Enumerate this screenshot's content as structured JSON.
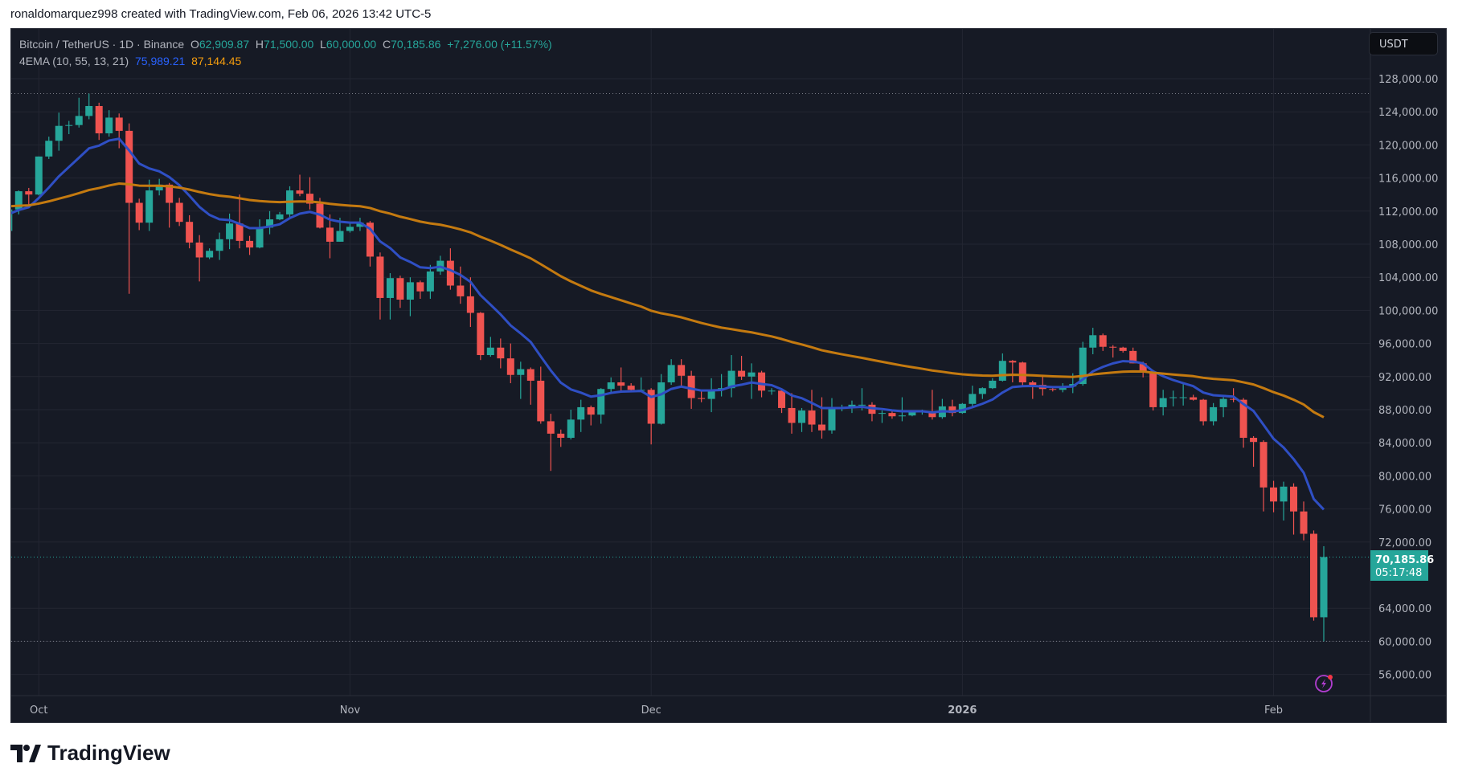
{
  "credit": "ronaldomarquez998 created with TradingView.com, Feb 06, 2026 13:42 UTC-5",
  "legend": {
    "symbol": "Bitcoin / TetherUS · 1D · Binance",
    "o_label": "O",
    "o": "62,909.87",
    "h_label": "H",
    "h": "71,500.00",
    "l_label": "L",
    "l": "60,000.00",
    "c_label": "C",
    "c": "70,185.86",
    "change": "+7,276.00 (+11.57%)",
    "indicator": "4EMA (10, 55, 13, 21)",
    "ema_fast": "75,989.21",
    "ema_slow": "87,144.45"
  },
  "currency_button": "USDT",
  "price_tag": {
    "price": "70,185.86",
    "countdown": "05:17:48"
  },
  "footer_logo": "TradingView",
  "colors": {
    "background": "#161a25",
    "grid": "#232632",
    "up": "#26a69a",
    "down": "#ef5350",
    "ema_fast": "#2f4fc4",
    "ema_slow": "#c47a10",
    "text": "#b2b5be"
  },
  "chart_data": {
    "type": "candlestick",
    "title": "Bitcoin / TetherUS · 1D · Binance",
    "ylim": [
      53500,
      131000
    ],
    "y_ticks": [
      "128,000.00",
      "124,000.00",
      "120,000.00",
      "116,000.00",
      "112,000.00",
      "108,000.00",
      "104,000.00",
      "100,000.00",
      "96,000.00",
      "92,000.00",
      "88,000.00",
      "84,000.00",
      "80,000.00",
      "76,000.00",
      "72,000.00",
      "64,000.00",
      "60,000.00",
      "56,000.00"
    ],
    "x_ticks": [
      {
        "label": "Oct",
        "date": "2025-10-01"
      },
      {
        "label": "Nov",
        "date": "2025-11-01"
      },
      {
        "label": "Dec",
        "date": "2025-12-01"
      },
      {
        "label": "2026",
        "date": "2026-01-01"
      },
      {
        "label": "Feb",
        "date": "2026-02-01"
      }
    ],
    "reference_lines": {
      "high": 126200,
      "last": 70185.86,
      "low": 60000
    },
    "ema_last": {
      "fast": 75989.21,
      "slow": 87144.45
    },
    "start_date": "2025-09-28",
    "ohlc": [
      [
        109.6,
        112.4,
        109.2,
        112.2
      ],
      [
        112.2,
        114.5,
        111.6,
        114.4
      ],
      [
        114.4,
        114.8,
        112.7,
        114.0
      ],
      [
        114.0,
        118.6,
        113.9,
        118.6
      ],
      [
        118.6,
        121.0,
        118.3,
        120.5
      ],
      [
        120.5,
        123.9,
        119.3,
        122.3
      ],
      [
        122.3,
        122.9,
        121.3,
        122.4
      ],
      [
        122.4,
        125.7,
        122.1,
        123.5
      ],
      [
        123.5,
        126.2,
        123.1,
        124.7
      ],
      [
        124.7,
        125.1,
        120.6,
        121.4
      ],
      [
        121.4,
        124.2,
        121.0,
        123.3
      ],
      [
        123.3,
        123.8,
        119.6,
        121.7
      ],
      [
        121.7,
        122.6,
        102.0,
        113.0
      ],
      [
        113.0,
        113.5,
        109.7,
        110.6
      ],
      [
        110.6,
        115.8,
        109.6,
        114.5
      ],
      [
        114.5,
        115.9,
        113.9,
        115.2
      ],
      [
        115.2,
        115.4,
        110.0,
        113.0
      ],
      [
        113.0,
        113.6,
        110.2,
        110.7
      ],
      [
        110.7,
        111.5,
        107.5,
        108.2
      ],
      [
        108.2,
        109.1,
        103.5,
        106.4
      ],
      [
        106.4,
        107.5,
        106.2,
        107.2
      ],
      [
        107.2,
        109.4,
        106.1,
        108.6
      ],
      [
        108.6,
        111.7,
        107.4,
        110.5
      ],
      [
        110.5,
        114.0,
        107.5,
        108.4
      ],
      [
        108.4,
        109.0,
        106.7,
        107.6
      ],
      [
        107.6,
        111.0,
        107.5,
        110.0
      ],
      [
        110.0,
        112.0,
        109.2,
        111.0
      ],
      [
        111.0,
        111.9,
        110.9,
        111.6
      ],
      [
        111.6,
        115.0,
        111.3,
        114.5
      ],
      [
        114.5,
        116.4,
        113.8,
        114.1
      ],
      [
        114.1,
        116.1,
        112.2,
        112.9
      ],
      [
        112.9,
        113.6,
        109.9,
        110.0
      ],
      [
        110.0,
        111.6,
        106.3,
        108.3
      ],
      [
        108.3,
        111.2,
        108.3,
        109.6
      ],
      [
        109.6,
        110.6,
        109.4,
        110.1
      ],
      [
        110.1,
        111.2,
        109.6,
        110.6
      ],
      [
        110.6,
        110.8,
        105.3,
        106.5
      ],
      [
        106.5,
        107.0,
        98.9,
        101.5
      ],
      [
        101.5,
        104.5,
        98.9,
        103.9
      ],
      [
        103.9,
        104.2,
        100.3,
        101.3
      ],
      [
        101.3,
        104.0,
        99.3,
        103.4
      ],
      [
        103.4,
        103.6,
        101.4,
        102.3
      ],
      [
        102.3,
        105.5,
        101.4,
        104.7
      ],
      [
        104.7,
        106.6,
        104.3,
        106.0
      ],
      [
        106.0,
        107.5,
        102.5,
        103.0
      ],
      [
        103.0,
        105.3,
        100.8,
        101.7
      ],
      [
        101.7,
        104.0,
        98.0,
        99.7
      ],
      [
        99.7,
        99.8,
        94.0,
        94.6
      ],
      [
        94.6,
        96.8,
        94.4,
        95.5
      ],
      [
        95.5,
        96.6,
        93.0,
        94.2
      ],
      [
        94.2,
        96.0,
        91.2,
        92.2
      ],
      [
        92.2,
        93.8,
        89.3,
        92.9
      ],
      [
        92.9,
        93.1,
        88.6,
        91.5
      ],
      [
        91.5,
        93.2,
        86.3,
        86.6
      ],
      [
        86.6,
        87.5,
        80.6,
        85.1
      ],
      [
        85.1,
        85.6,
        83.5,
        84.6
      ],
      [
        84.6,
        88.0,
        84.4,
        86.8
      ],
      [
        86.8,
        89.2,
        85.3,
        88.3
      ],
      [
        88.3,
        88.5,
        86.1,
        87.4
      ],
      [
        87.4,
        90.6,
        86.3,
        90.5
      ],
      [
        90.5,
        91.9,
        90.1,
        91.3
      ],
      [
        91.3,
        93.1,
        90.2,
        90.9
      ],
      [
        90.9,
        91.2,
        90.3,
        90.4
      ],
      [
        90.4,
        91.9,
        90.3,
        90.4
      ],
      [
        90.4,
        90.6,
        83.8,
        86.3
      ],
      [
        86.3,
        92.3,
        86.2,
        91.3
      ],
      [
        91.3,
        94.1,
        91.0,
        93.4
      ],
      [
        93.4,
        94.1,
        90.9,
        92.1
      ],
      [
        92.1,
        92.7,
        88.1,
        89.4
      ],
      [
        89.4,
        90.3,
        88.9,
        89.3
      ],
      [
        89.3,
        91.8,
        87.7,
        90.4
      ],
      [
        90.4,
        92.3,
        89.6,
        90.6
      ],
      [
        90.6,
        94.6,
        89.5,
        92.7
      ],
      [
        92.7,
        94.5,
        91.6,
        92.0
      ],
      [
        92.0,
        93.6,
        89.3,
        92.5
      ],
      [
        92.5,
        92.7,
        89.5,
        90.3
      ],
      [
        90.3,
        90.6,
        89.8,
        90.3
      ],
      [
        90.3,
        90.5,
        87.6,
        88.2
      ],
      [
        88.2,
        90.0,
        85.1,
        86.4
      ],
      [
        86.4,
        88.2,
        85.3,
        87.9
      ],
      [
        87.9,
        90.4,
        85.3,
        86.2
      ],
      [
        86.2,
        89.5,
        84.5,
        85.5
      ],
      [
        85.5,
        89.4,
        85.1,
        88.1
      ],
      [
        88.1,
        88.6,
        87.8,
        88.3
      ],
      [
        88.3,
        89.1,
        87.6,
        88.6
      ],
      [
        88.6,
        90.6,
        87.9,
        88.6
      ],
      [
        88.6,
        88.9,
        86.6,
        87.5
      ],
      [
        87.5,
        87.9,
        86.4,
        87.6
      ],
      [
        87.6,
        88.0,
        86.9,
        87.2
      ],
      [
        87.2,
        89.5,
        86.6,
        87.3
      ],
      [
        87.3,
        87.9,
        87.2,
        87.8
      ],
      [
        87.8,
        88.0,
        87.4,
        87.8
      ],
      [
        87.8,
        90.4,
        86.8,
        87.1
      ],
      [
        87.1,
        89.3,
        86.9,
        88.4
      ],
      [
        88.4,
        89.2,
        87.2,
        87.6
      ],
      [
        87.6,
        88.8,
        87.5,
        88.7
      ],
      [
        88.7,
        90.9,
        88.4,
        89.9
      ],
      [
        89.9,
        90.7,
        89.3,
        90.6
      ],
      [
        90.6,
        91.8,
        90.5,
        91.5
      ],
      [
        91.5,
        94.8,
        91.4,
        93.9
      ],
      [
        93.9,
        94.0,
        91.3,
        93.7
      ],
      [
        93.7,
        93.8,
        90.8,
        91.3
      ],
      [
        91.3,
        91.5,
        89.3,
        91.0
      ],
      [
        91.0,
        92.0,
        89.7,
        90.5
      ],
      [
        90.5,
        90.8,
        90.2,
        90.4
      ],
      [
        90.4,
        91.2,
        90.1,
        90.8
      ],
      [
        90.8,
        92.4,
        90.0,
        91.1
      ],
      [
        91.1,
        96.2,
        90.9,
        95.5
      ],
      [
        95.5,
        97.9,
        94.7,
        97.0
      ],
      [
        97.0,
        97.2,
        95.1,
        95.6
      ],
      [
        95.6,
        95.8,
        94.3,
        95.5
      ],
      [
        95.5,
        95.6,
        94.9,
        95.1
      ],
      [
        95.1,
        95.5,
        93.6,
        93.6
      ],
      [
        93.6,
        93.8,
        91.9,
        92.6
      ],
      [
        92.6,
        92.8,
        87.9,
        88.3
      ],
      [
        88.3,
        90.4,
        87.3,
        89.4
      ],
      [
        89.4,
        90.3,
        88.4,
        89.5
      ],
      [
        89.5,
        91.2,
        88.5,
        89.5
      ],
      [
        89.5,
        89.8,
        89.1,
        89.2
      ],
      [
        89.2,
        89.3,
        86.1,
        86.6
      ],
      [
        86.6,
        88.8,
        86.1,
        88.3
      ],
      [
        88.3,
        89.5,
        87.1,
        89.3
      ],
      [
        89.3,
        90.6,
        88.9,
        89.2
      ],
      [
        89.2,
        89.4,
        83.4,
        84.6
      ],
      [
        84.6,
        84.8,
        81.1,
        84.1
      ],
      [
        84.1,
        84.3,
        75.7,
        78.6
      ],
      [
        78.6,
        79.4,
        75.6,
        76.9
      ],
      [
        76.9,
        79.3,
        74.6,
        78.7
      ],
      [
        78.7,
        79.1,
        72.9,
        75.7
      ],
      [
        75.7,
        76.9,
        72.2,
        73.0
      ],
      [
        73.0,
        73.4,
        62.5,
        62.91
      ],
      [
        62.91,
        71.5,
        60.0,
        70.19
      ]
    ]
  }
}
